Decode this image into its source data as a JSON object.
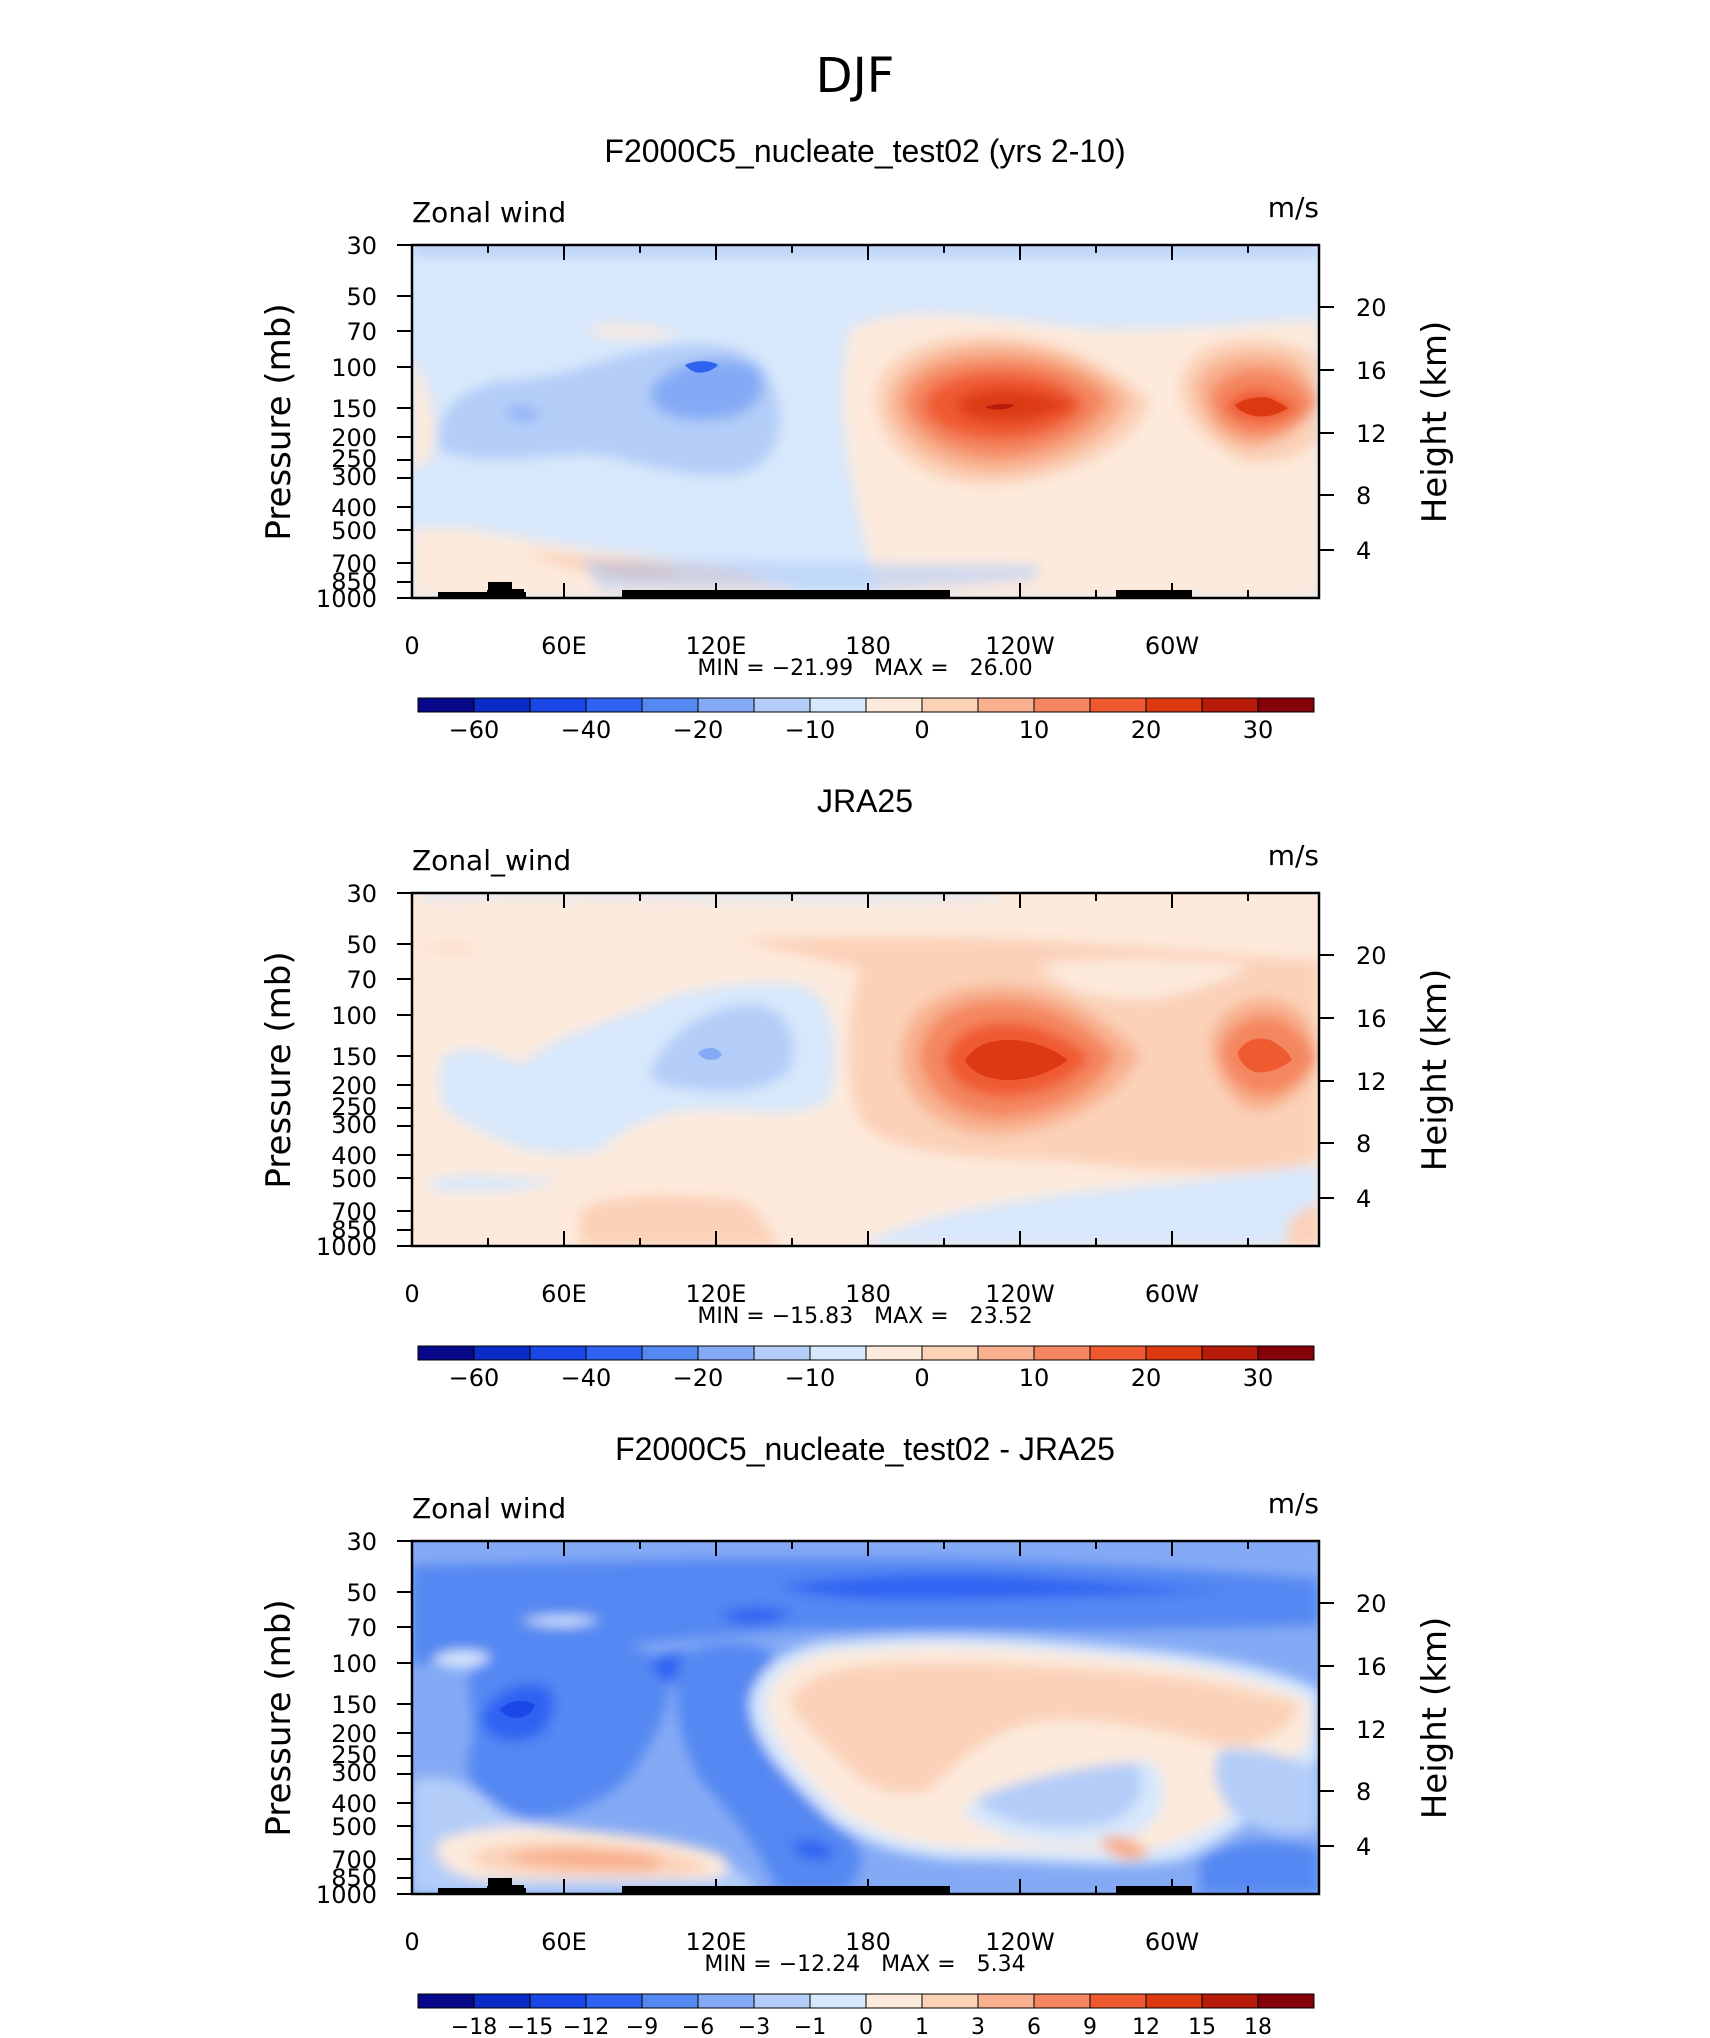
{
  "page": {
    "title": "DJF",
    "palette": {
      "test_colors": [
        "#08088a",
        "#0a2bc4",
        "#1a47e6",
        "#2e63f2",
        "#5588f2",
        "#84aaf5",
        "#b3cdf8",
        "#d8e8fc",
        "#fdeadc",
        "#fbd1b8",
        "#f8b08e",
        "#f48761",
        "#ef5a30",
        "#dd3a14",
        "#b71c0a",
        "#85020b"
      ],
      "diff_colors": [
        "#08088a",
        "#0a2bc4",
        "#1a47e6",
        "#2e63f2",
        "#5588f2",
        "#84aaf5",
        "#b3cdf8",
        "#d8e8fc",
        "#fdeadc",
        "#fbd1b8",
        "#f8b08e",
        "#f48761",
        "#ef5a30",
        "#dd3a14",
        "#b71c0a",
        "#85020b"
      ],
      "topography": "#000000"
    }
  },
  "panels": [
    {
      "title": "F2000C5_nucleate_test02 (yrs 2-10)",
      "left_label": "Zonal wind",
      "right_label": "m/s",
      "y_axis_title": "Pressure (mb)",
      "y2_axis_title": "Height (km)",
      "stats": "MIN = −21.99   MAX =   26.00",
      "colorbar_labels": [
        "−60",
        "−40",
        "−20",
        "−10",
        "0",
        "10",
        "20",
        "30"
      ]
    },
    {
      "title": "JRA25",
      "left_label": "Zonal_wind",
      "right_label": "m/s",
      "y_axis_title": "Pressure (mb)",
      "y2_axis_title": "Height (km)",
      "stats": "MIN = −15.83   MAX =   23.52",
      "colorbar_labels": [
        "−60",
        "−40",
        "−20",
        "−10",
        "0",
        "10",
        "20",
        "30"
      ]
    },
    {
      "title": "F2000C5_nucleate_test02 - JRA25",
      "left_label": "Zonal wind",
      "right_label": "m/s",
      "y_axis_title": "Pressure (mb)",
      "y2_axis_title": "Height (km)",
      "stats": "MIN = −12.24   MAX =   5.34",
      "colorbar_labels": [
        "−18",
        "−15",
        "−12",
        "−9",
        "−6",
        "−3",
        "−1",
        "0",
        "1",
        "3",
        "6",
        "9",
        "12",
        "15",
        "18"
      ]
    }
  ],
  "chart_data": [
    {
      "type": "heatmap",
      "title": "F2000C5_nucleate_test02 (yrs 2-10)",
      "ylabel": "Pressure (mb)",
      "y2label": "Height (km)",
      "x_ticks": [
        "0",
        "60E",
        "120E",
        "180",
        "120W",
        "60W"
      ],
      "y_ticks": [
        30,
        50,
        70,
        100,
        150,
        200,
        250,
        300,
        400,
        500,
        700,
        850,
        1000
      ],
      "y2_ticks": [
        4,
        8,
        12,
        16,
        20
      ],
      "xlim": [
        0,
        360
      ],
      "ylim": [
        1000,
        30
      ],
      "y_scale": "log",
      "min": -21.99,
      "max": 26.0,
      "units": "m/s",
      "features": [
        {
          "kind": "max",
          "lon": 235,
          "p": 150,
          "value": 26.0
        },
        {
          "kind": "max",
          "lon": 332,
          "p": 150,
          "value": 18
        },
        {
          "kind": "min",
          "lon": 115,
          "p": 110,
          "value": -21.99
        },
        {
          "kind": "min",
          "lon": 45,
          "p": 160,
          "value": -12
        }
      ]
    },
    {
      "type": "heatmap",
      "title": "JRA25",
      "ylabel": "Pressure (mb)",
      "y2label": "Height (km)",
      "x_ticks": [
        "0",
        "60E",
        "120E",
        "180",
        "120W",
        "60W"
      ],
      "y_ticks": [
        30,
        50,
        70,
        100,
        150,
        200,
        250,
        300,
        400,
        500,
        700,
        850,
        1000
      ],
      "y2_ticks": [
        4,
        8,
        12,
        16,
        20
      ],
      "xlim": [
        0,
        360
      ],
      "ylim": [
        1000,
        30
      ],
      "y_scale": "log",
      "min": -15.83,
      "max": 23.52,
      "units": "m/s",
      "features": [
        {
          "kind": "max",
          "lon": 238,
          "p": 160,
          "value": 23.52
        },
        {
          "kind": "max",
          "lon": 332,
          "p": 160,
          "value": 18
        },
        {
          "kind": "min",
          "lon": 120,
          "p": 150,
          "value": -15.83
        }
      ]
    },
    {
      "type": "heatmap",
      "title": "F2000C5_nucleate_test02 - JRA25",
      "ylabel": "Pressure (mb)",
      "y2label": "Height (km)",
      "x_ticks": [
        "0",
        "60E",
        "120E",
        "180",
        "120W",
        "60W"
      ],
      "y_ticks": [
        30,
        50,
        70,
        100,
        150,
        200,
        250,
        300,
        400,
        500,
        700,
        850,
        1000
      ],
      "y2_ticks": [
        4,
        8,
        12,
        16,
        20
      ],
      "xlim": [
        0,
        360
      ],
      "ylim": [
        1000,
        30
      ],
      "y_scale": "log",
      "min": -12.24,
      "max": 5.34,
      "units": "m/s",
      "features": [
        {
          "kind": "min",
          "lon": 45,
          "p": 160,
          "value": -12.24
        },
        {
          "kind": "min",
          "lon": 105,
          "p": 100,
          "value": -10
        },
        {
          "kind": "min",
          "lon": 175,
          "p": 50,
          "value": -10
        },
        {
          "kind": "max",
          "lon": 210,
          "p": 170,
          "value": 5.34
        },
        {
          "kind": "max",
          "lon": 50,
          "p": 760,
          "value": 4
        }
      ]
    }
  ]
}
